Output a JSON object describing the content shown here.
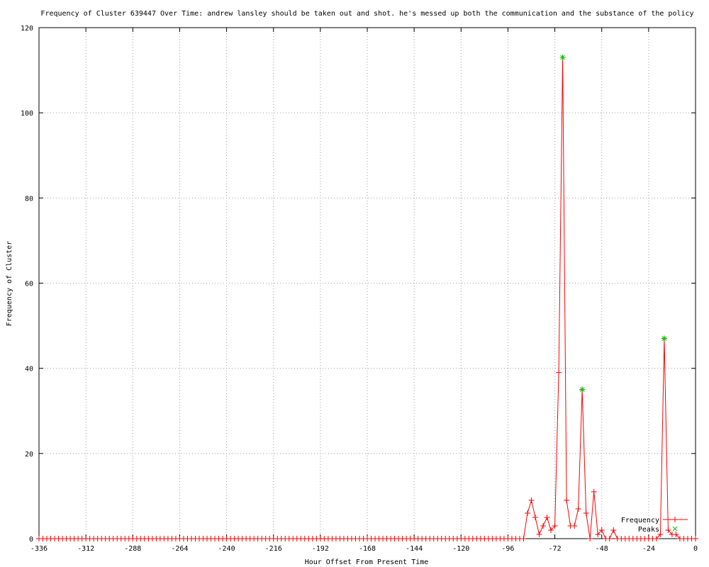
{
  "chart_data": {
    "type": "line",
    "title": "Frequency of Cluster 639447 Over Time: andrew lansley should be taken out and shot. he's messed up both the communication and the substance of the policy",
    "xlabel": "Hour Offset From Present Time",
    "ylabel": "Frequency of Cluster",
    "xlim": [
      -336,
      0
    ],
    "ylim": [
      0,
      120
    ],
    "xticks": [
      -336,
      -312,
      -288,
      -264,
      -240,
      -216,
      -192,
      -168,
      -144,
      -120,
      -96,
      -72,
      -48,
      -24,
      0
    ],
    "yticks": [
      0,
      20,
      40,
      60,
      80,
      100,
      120
    ],
    "grid": true,
    "legend_position": "bottom-right",
    "series": [
      {
        "name": "Frequency",
        "color": "#ff0000",
        "marker": "plus",
        "x": [
          -336,
          -334,
          -332,
          -330,
          -328,
          -326,
          -324,
          -322,
          -320,
          -318,
          -316,
          -314,
          -312,
          -310,
          -308,
          -306,
          -304,
          -302,
          -300,
          -298,
          -296,
          -294,
          -292,
          -290,
          -288,
          -286,
          -284,
          -282,
          -280,
          -278,
          -276,
          -274,
          -272,
          -270,
          -268,
          -266,
          -264,
          -262,
          -260,
          -258,
          -256,
          -254,
          -252,
          -250,
          -248,
          -246,
          -244,
          -242,
          -240,
          -238,
          -236,
          -234,
          -232,
          -230,
          -228,
          -226,
          -224,
          -222,
          -220,
          -218,
          -216,
          -214,
          -212,
          -210,
          -208,
          -206,
          -204,
          -202,
          -200,
          -198,
          -196,
          -194,
          -192,
          -190,
          -188,
          -186,
          -184,
          -182,
          -180,
          -178,
          -176,
          -174,
          -172,
          -170,
          -168,
          -166,
          -164,
          -162,
          -160,
          -158,
          -156,
          -154,
          -152,
          -150,
          -148,
          -146,
          -144,
          -142,
          -140,
          -138,
          -136,
          -134,
          -132,
          -130,
          -128,
          -126,
          -124,
          -122,
          -120,
          -118,
          -116,
          -114,
          -112,
          -110,
          -108,
          -106,
          -104,
          -102,
          -100,
          -98,
          -96,
          -94,
          -92,
          -90,
          -88,
          -86,
          -84,
          -82,
          -80,
          -78,
          -76,
          -74,
          -72,
          -70,
          -68,
          -66,
          -64,
          -62,
          -60,
          -58,
          -56,
          -54,
          -52,
          -50,
          -48,
          -46,
          -44,
          -42,
          -40,
          -38,
          -36,
          -34,
          -32,
          -30,
          -28,
          -26,
          -24,
          -22,
          -20,
          -18,
          -16,
          -14,
          -12,
          -10,
          -8,
          -6,
          -4,
          -2,
          0
        ],
        "y": [
          0,
          0,
          0,
          0,
          0,
          0,
          0,
          0,
          0,
          0,
          0,
          0,
          0,
          0,
          0,
          0,
          0,
          0,
          0,
          0,
          0,
          0,
          0,
          0,
          0,
          0,
          0,
          0,
          0,
          0,
          0,
          0,
          0,
          0,
          0,
          0,
          0,
          0,
          0,
          0,
          0,
          0,
          0,
          0,
          0,
          0,
          0,
          0,
          0,
          0,
          0,
          0,
          0,
          0,
          0,
          0,
          0,
          0,
          0,
          0,
          0,
          0,
          0,
          0,
          0,
          0,
          0,
          0,
          0,
          0,
          0,
          0,
          0,
          0,
          0,
          0,
          0,
          0,
          0,
          0,
          0,
          0,
          0,
          0,
          0,
          0,
          0,
          0,
          0,
          0,
          0,
          0,
          0,
          0,
          0,
          0,
          0,
          0,
          0,
          0,
          0,
          0,
          0,
          0,
          0,
          0,
          0,
          0,
          0,
          0,
          0,
          0,
          0,
          0,
          0,
          0,
          0,
          0,
          0,
          0,
          0,
          0,
          0,
          0,
          0,
          6,
          9,
          5,
          1,
          3,
          5,
          2,
          3,
          39,
          113,
          9,
          3,
          3,
          7,
          35,
          6,
          0,
          11,
          1,
          2,
          0,
          0,
          2,
          0,
          0,
          0,
          0,
          0,
          0,
          0,
          0,
          0,
          0,
          0,
          1,
          47,
          2,
          1,
          1,
          0,
          0,
          0,
          0,
          0
        ]
      },
      {
        "name": "Peaks",
        "color": "#00c000",
        "marker": "asterisk",
        "x": [
          -68,
          -58,
          -16
        ],
        "y": [
          113,
          35,
          47
        ]
      }
    ]
  }
}
